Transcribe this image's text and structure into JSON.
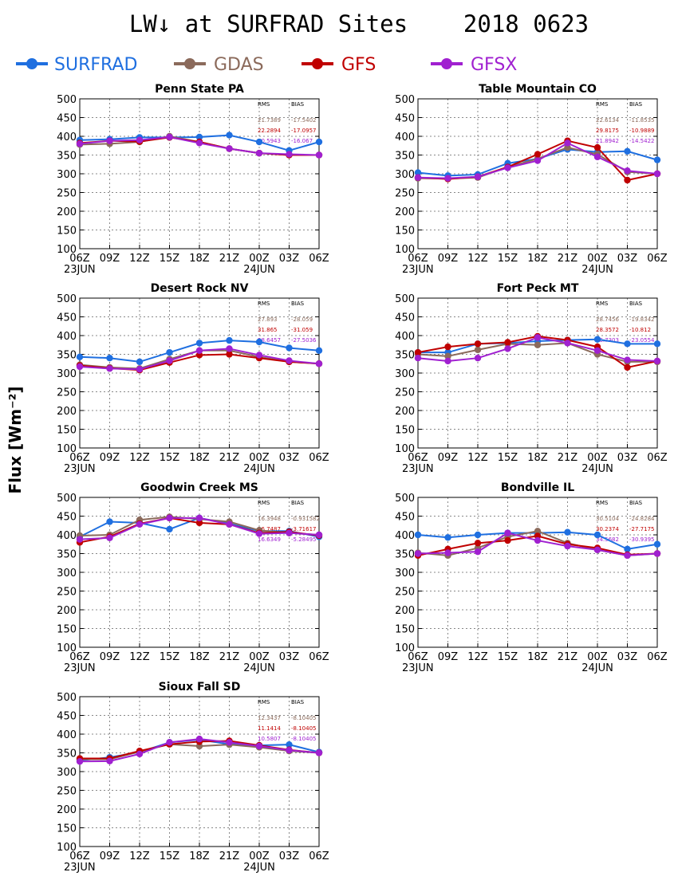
{
  "title": "LW↓ at SURFRAD Sites    2018 0623",
  "ylabel": "Flux [Wm⁻²]",
  "legend": [
    {
      "name": "SURFRAD",
      "color": "#1f6fe0"
    },
    {
      "name": "GDAS",
      "color": "#8b6a5b"
    },
    {
      "name": "GFS",
      "color": "#c00000"
    },
    {
      "name": "GFSX",
      "color": "#a020d0"
    }
  ],
  "chart_data": [
    {
      "type": "line",
      "title": "Penn State PA",
      "categories": [
        "06Z",
        "09Z",
        "12Z",
        "15Z",
        "18Z",
        "21Z",
        "00Z",
        "03Z",
        "06Z"
      ],
      "date_labels": [
        "23JUN",
        "24JUN"
      ],
      "ylim": [
        100,
        500
      ],
      "yticks": [
        100,
        150,
        200,
        250,
        300,
        350,
        400,
        450,
        500
      ],
      "grid": true,
      "stats_header": [
        "RMS",
        "BIAS"
      ],
      "stats": [
        {
          "model": "GDAS",
          "rms": "21.7389",
          "bias": "-17.5402"
        },
        {
          "model": "GFS",
          "rms": "22.2894",
          "bias": "-17.0957"
        },
        {
          "model": "GFSX",
          "rms": "20.5943",
          "bias": "-16.067"
        }
      ],
      "series": [
        {
          "name": "SURFRAD",
          "values": [
            390,
            392,
            397,
            397,
            398,
            403,
            385,
            362,
            385
          ]
        },
        {
          "name": "GDAS",
          "values": [
            378,
            380,
            385,
            400,
            385,
            367,
            355,
            350,
            350
          ]
        },
        {
          "name": "GFS",
          "values": [
            382,
            388,
            386,
            397,
            385,
            367,
            355,
            350,
            350
          ]
        },
        {
          "name": "GFSX",
          "values": [
            380,
            388,
            390,
            398,
            382,
            367,
            355,
            352,
            350
          ]
        }
      ]
    },
    {
      "type": "line",
      "title": "Table Mountain CO",
      "categories": [
        "06Z",
        "09Z",
        "12Z",
        "15Z",
        "18Z",
        "21Z",
        "00Z",
        "03Z",
        "06Z"
      ],
      "date_labels": [
        "23JUN",
        "24JUN"
      ],
      "ylim": [
        100,
        500
      ],
      "yticks": [
        100,
        150,
        200,
        250,
        300,
        350,
        400,
        450,
        500
      ],
      "grid": true,
      "stats_header": [
        "RMS",
        "BIAS"
      ],
      "stats": [
        {
          "model": "GDAS",
          "rms": "22.6134",
          "bias": "-11.8535"
        },
        {
          "model": "GFS",
          "rms": "29.8175",
          "bias": "-10.9889"
        },
        {
          "model": "GFSX",
          "rms": "21.8942",
          "bias": "-14.5422"
        }
      ],
      "series": [
        {
          "name": "SURFRAD",
          "values": [
            303,
            295,
            298,
            328,
            340,
            365,
            358,
            360,
            337
          ]
        },
        {
          "name": "GDAS",
          "values": [
            288,
            287,
            290,
            318,
            340,
            370,
            352,
            305,
            300
          ]
        },
        {
          "name": "GFS",
          "values": [
            290,
            286,
            292,
            318,
            352,
            388,
            370,
            283,
            300
          ]
        },
        {
          "name": "GFSX",
          "values": [
            290,
            288,
            292,
            316,
            335,
            382,
            345,
            308,
            300
          ]
        }
      ]
    },
    {
      "type": "line",
      "title": "Desert Rock NV",
      "categories": [
        "06Z",
        "09Z",
        "12Z",
        "15Z",
        "18Z",
        "21Z",
        "00Z",
        "03Z",
        "06Z"
      ],
      "date_labels": [
        "23JUN",
        "24JUN"
      ],
      "ylim": [
        100,
        500
      ],
      "yticks": [
        100,
        150,
        200,
        250,
        300,
        350,
        400,
        450,
        500
      ],
      "grid": true,
      "stats_header": [
        "RMS",
        "BIAS"
      ],
      "stats": [
        {
          "model": "GDAS",
          "rms": "27.893",
          "bias": "-28.059"
        },
        {
          "model": "GFS",
          "rms": "31.865",
          "bias": "-31.059"
        },
        {
          "model": "GFSX",
          "rms": "28.6457",
          "bias": "-27.5036"
        }
      ],
      "series": [
        {
          "name": "SURFRAD",
          "values": [
            343,
            340,
            330,
            355,
            380,
            387,
            383,
            367,
            360
          ]
        },
        {
          "name": "GDAS",
          "values": [
            322,
            315,
            312,
            337,
            360,
            360,
            343,
            330,
            325
          ]
        },
        {
          "name": "GFS",
          "values": [
            320,
            313,
            308,
            328,
            348,
            350,
            340,
            330,
            325
          ]
        },
        {
          "name": "GFSX",
          "values": [
            317,
            312,
            310,
            333,
            360,
            365,
            348,
            333,
            325
          ]
        }
      ]
    },
    {
      "type": "line",
      "title": "Fort Peck MT",
      "categories": [
        "06Z",
        "09Z",
        "12Z",
        "15Z",
        "18Z",
        "21Z",
        "00Z",
        "03Z",
        "06Z"
      ],
      "date_labels": [
        "23JUN",
        "24JUN"
      ],
      "ylim": [
        100,
        500
      ],
      "yticks": [
        100,
        150,
        200,
        250,
        300,
        350,
        400,
        450,
        500
      ],
      "grid": true,
      "stats_header": [
        "RMS",
        "BIAS"
      ],
      "stats": [
        {
          "model": "GDAS",
          "rms": "28.7456",
          "bias": "-19.8342"
        },
        {
          "model": "GFS",
          "rms": "28.3572",
          "bias": "-10.812"
        },
        {
          "model": "GFSX",
          "rms": "26.7303",
          "bias": "-23.0554"
        }
      ],
      "series": [
        {
          "name": "SURFRAD",
          "values": [
            355,
            355,
            378,
            380,
            385,
            388,
            390,
            378,
            378
          ]
        },
        {
          "name": "GDAS",
          "values": [
            350,
            345,
            362,
            378,
            375,
            380,
            350,
            330,
            330
          ]
        },
        {
          "name": "GFS",
          "values": [
            355,
            370,
            378,
            382,
            398,
            388,
            370,
            315,
            332
          ]
        },
        {
          "name": "GFSX",
          "values": [
            340,
            332,
            340,
            365,
            395,
            380,
            360,
            335,
            332
          ]
        }
      ]
    },
    {
      "type": "line",
      "title": "Goodwin Creek MS",
      "categories": [
        "06Z",
        "09Z",
        "12Z",
        "15Z",
        "18Z",
        "21Z",
        "00Z",
        "03Z",
        "06Z"
      ],
      "date_labels": [
        "23JUN",
        "24JUN"
      ],
      "ylim": [
        100,
        500
      ],
      "yticks": [
        100,
        150,
        200,
        250,
        300,
        350,
        400,
        450,
        500
      ],
      "grid": true,
      "stats_header": [
        "RMS",
        "BIAS"
      ],
      "stats": [
        {
          "model": "GDAS",
          "rms": "16.3948",
          "bias": "-0.931582"
        },
        {
          "model": "GFS",
          "rms": "16.7487",
          "bias": "-3.71617"
        },
        {
          "model": "GFSX",
          "rms": "16.6349",
          "bias": "-5.28495"
        }
      ],
      "series": [
        {
          "name": "SURFRAD",
          "values": [
            395,
            435,
            432,
            415,
            445,
            430,
            410,
            410,
            395
          ]
        },
        {
          "name": "GDAS",
          "values": [
            398,
            400,
            440,
            448,
            442,
            435,
            412,
            405,
            400
          ]
        },
        {
          "name": "GFS",
          "values": [
            380,
            395,
            430,
            445,
            432,
            428,
            405,
            408,
            398
          ]
        },
        {
          "name": "GFSX",
          "values": [
            388,
            392,
            428,
            445,
            445,
            428,
            403,
            405,
            400
          ]
        }
      ]
    },
    {
      "type": "line",
      "title": "Bondville IL",
      "categories": [
        "06Z",
        "09Z",
        "12Z",
        "15Z",
        "18Z",
        "21Z",
        "00Z",
        "03Z",
        "06Z"
      ],
      "date_labels": [
        "23JUN",
        "24JUN"
      ],
      "ylim": [
        100,
        500
      ],
      "yticks": [
        100,
        150,
        200,
        250,
        300,
        350,
        400,
        450,
        500
      ],
      "grid": true,
      "stats_header": [
        "RMS",
        "BIAS"
      ],
      "stats": [
        {
          "model": "GDAS",
          "rms": "30.5104",
          "bias": "-24.8284"
        },
        {
          "model": "GFS",
          "rms": "30.2374",
          "bias": "-27.7175"
        },
        {
          "model": "GFSX",
          "rms": "34.5682",
          "bias": "-30.9395"
        }
      ],
      "series": [
        {
          "name": "SURFRAD",
          "values": [
            400,
            393,
            400,
            405,
            405,
            407,
            400,
            362,
            375
          ]
        },
        {
          "name": "GDAS",
          "values": [
            352,
            345,
            365,
            395,
            410,
            378,
            360,
            345,
            350
          ]
        },
        {
          "name": "GFS",
          "values": [
            345,
            362,
            378,
            385,
            397,
            375,
            365,
            347,
            350
          ]
        },
        {
          "name": "GFSX",
          "values": [
            350,
            352,
            355,
            405,
            385,
            370,
            360,
            345,
            350
          ]
        }
      ]
    },
    {
      "type": "line",
      "title": "Sioux Fall SD",
      "categories": [
        "06Z",
        "09Z",
        "12Z",
        "15Z",
        "18Z",
        "21Z",
        "00Z",
        "03Z",
        "06Z"
      ],
      "date_labels": [
        "23JUN",
        "24JUN"
      ],
      "ylim": [
        100,
        500
      ],
      "yticks": [
        100,
        150,
        200,
        250,
        300,
        350,
        400,
        450,
        500
      ],
      "grid": true,
      "stats_header": [
        "RMS",
        "BIAS"
      ],
      "stats": [
        {
          "model": "GDAS",
          "rms": "12.3437",
          "bias": "-8.10405"
        },
        {
          "model": "GFS",
          "rms": "11.1414",
          "bias": "-8.10405"
        },
        {
          "model": "GFSX",
          "rms": "10.5807",
          "bias": "-8.10405"
        }
      ],
      "series": [
        {
          "name": "SURFRAD",
          "values": [
            330,
            338,
            352,
            378,
            385,
            373,
            370,
            372,
            352
          ]
        },
        {
          "name": "GDAS",
          "values": [
            333,
            333,
            353,
            373,
            368,
            372,
            365,
            355,
            350
          ]
        },
        {
          "name": "GFS",
          "values": [
            335,
            335,
            355,
            373,
            380,
            382,
            370,
            358,
            350
          ]
        },
        {
          "name": "GFSX",
          "values": [
            327,
            328,
            347,
            378,
            387,
            378,
            368,
            357,
            350
          ]
        }
      ]
    }
  ]
}
